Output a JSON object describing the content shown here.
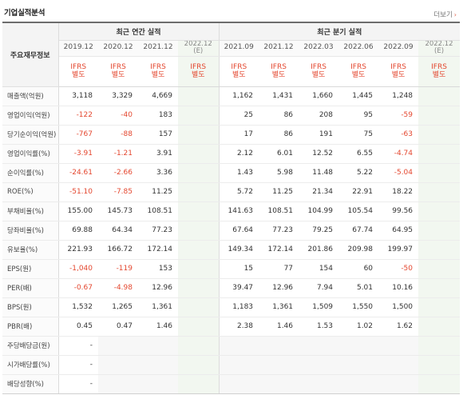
{
  "header": {
    "title": "기업실적분석",
    "more_label": "더보기"
  },
  "table": {
    "corner_label": "주요재무정보",
    "annual_group_label": "최근 연간 실적",
    "quarterly_group_label": "최근 분기 실적",
    "annual_periods": [
      "2019.12",
      "2020.12",
      "2021.12",
      "2022.12\n(E)"
    ],
    "quarterly_periods": [
      "2021.09",
      "2021.12",
      "2022.03",
      "2022.06",
      "2022.09",
      "2022.12\n(E)"
    ],
    "basis_label": "IFRS\n별도",
    "rows": [
      {
        "label": "매출액(억원)",
        "values": [
          "3,118",
          "3,329",
          "4,669",
          "",
          "1,162",
          "1,431",
          "1,660",
          "1,445",
          "1,248",
          ""
        ]
      },
      {
        "label": "영업이익(억원)",
        "values": [
          "-122",
          "-40",
          "183",
          "",
          "25",
          "86",
          "208",
          "95",
          "-59",
          ""
        ]
      },
      {
        "label": "당기순이익(억원)",
        "values": [
          "-767",
          "-88",
          "157",
          "",
          "17",
          "86",
          "191",
          "75",
          "-63",
          ""
        ]
      },
      {
        "label": "영업이익률(%)",
        "values": [
          "-3.91",
          "-1.21",
          "3.91",
          "",
          "2.12",
          "6.01",
          "12.52",
          "6.55",
          "-4.74",
          ""
        ]
      },
      {
        "label": "순이익률(%)",
        "values": [
          "-24.61",
          "-2.66",
          "3.36",
          "",
          "1.43",
          "5.98",
          "11.48",
          "5.22",
          "-5.04",
          ""
        ]
      },
      {
        "label": "ROE(%)",
        "values": [
          "-51.10",
          "-7.85",
          "11.25",
          "",
          "5.72",
          "11.25",
          "21.34",
          "22.91",
          "18.22",
          ""
        ]
      },
      {
        "label": "부채비율(%)",
        "values": [
          "155.00",
          "145.73",
          "108.51",
          "",
          "141.63",
          "108.51",
          "104.99",
          "105.54",
          "99.56",
          ""
        ]
      },
      {
        "label": "당좌비율(%)",
        "values": [
          "69.88",
          "64.34",
          "77.23",
          "",
          "67.64",
          "77.23",
          "79.25",
          "67.74",
          "64.95",
          ""
        ]
      },
      {
        "label": "유보율(%)",
        "values": [
          "221.93",
          "166.72",
          "172.14",
          "",
          "149.34",
          "172.14",
          "201.86",
          "209.98",
          "199.97",
          ""
        ]
      },
      {
        "label": "EPS(원)",
        "values": [
          "-1,040",
          "-119",
          "153",
          "",
          "15",
          "77",
          "154",
          "60",
          "-50",
          ""
        ]
      },
      {
        "label": "PER(배)",
        "values": [
          "-0.67",
          "-4.98",
          "12.96",
          "",
          "39.47",
          "12.96",
          "7.94",
          "5.01",
          "10.16",
          ""
        ]
      },
      {
        "label": "BPS(원)",
        "values": [
          "1,532",
          "1,265",
          "1,361",
          "",
          "1,183",
          "1,361",
          "1,509",
          "1,550",
          "1,500",
          ""
        ]
      },
      {
        "label": "PBR(배)",
        "values": [
          "0.45",
          "0.47",
          "1.46",
          "",
          "2.38",
          "1.46",
          "1.53",
          "1.02",
          "1.62",
          ""
        ]
      },
      {
        "label": "주당배당금(원)",
        "values": [
          "-",
          "",
          "",
          "",
          "",
          "",
          "",
          "",
          "",
          ""
        ]
      },
      {
        "label": "시가배당률(%)",
        "values": [
          "-",
          "",
          "",
          "",
          "",
          "",
          "",
          "",
          "",
          ""
        ]
      },
      {
        "label": "배당성향(%)",
        "values": [
          "-",
          "",
          "",
          "",
          "",
          "",
          "",
          "",
          "",
          ""
        ]
      }
    ]
  },
  "colors": {
    "negative": "#e4472f",
    "estimate_bg": "#f2f7f0",
    "header_bg": "#f4f4f4"
  }
}
